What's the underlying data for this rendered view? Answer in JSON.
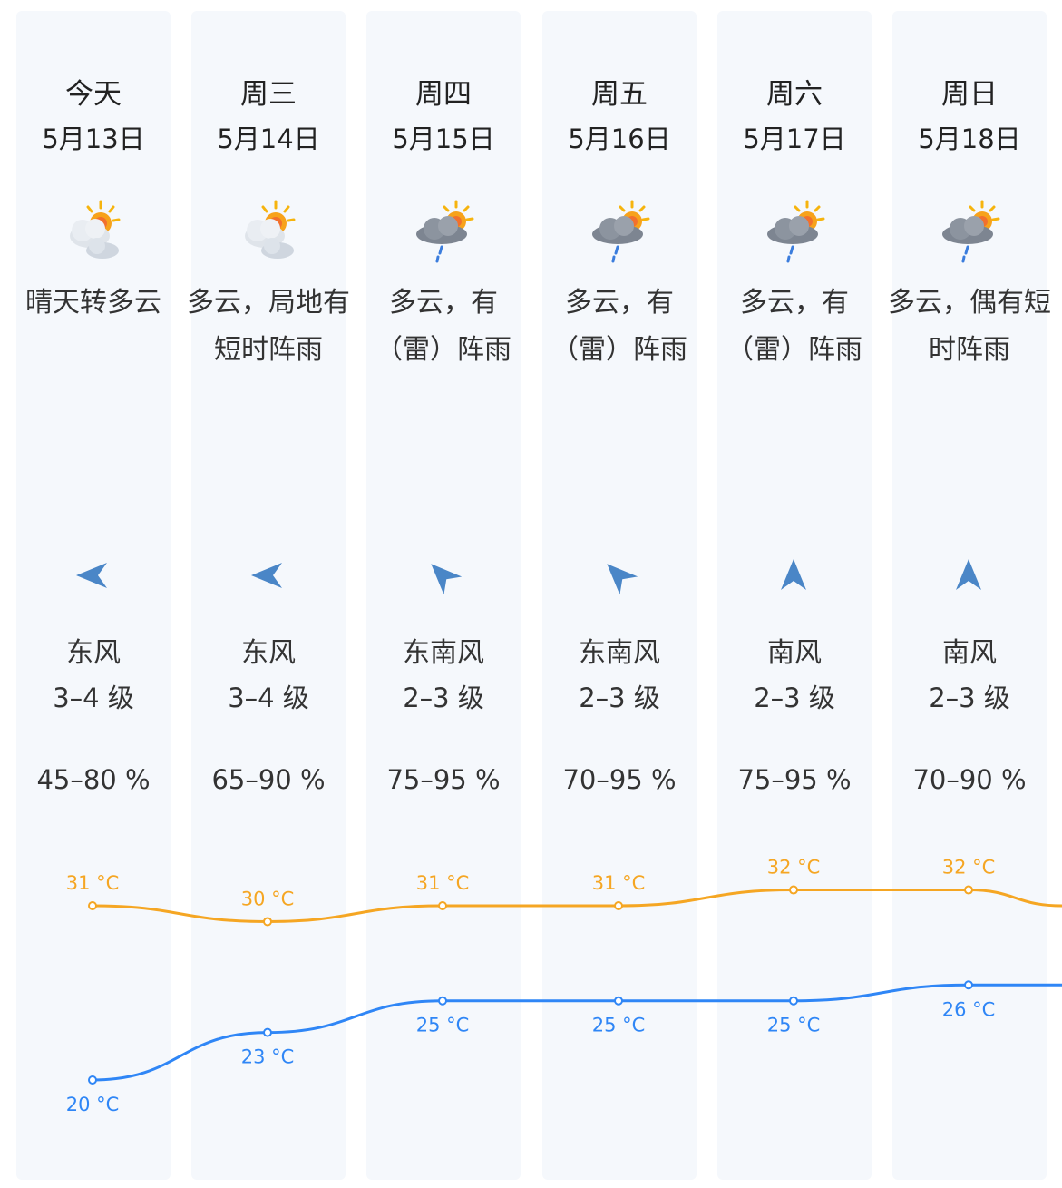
{
  "colors": {
    "high": "#f5a623",
    "low": "#2f86f6",
    "column_bg": "#f5f8fc",
    "wind_icon": "#4a86c7"
  },
  "days": [
    {
      "day": "今天",
      "date": "5月13日",
      "icon": "sun-cloud-icon",
      "desc": "晴天转多云",
      "wind_dir": "东风",
      "wind_icon": "wind-west-arrow-icon",
      "wind_level": "3–4 级",
      "humidity": "45–80 %",
      "high": 31,
      "low": 20
    },
    {
      "day": "周三",
      "date": "5月14日",
      "icon": "sun-cloud-icon",
      "desc": "多云，局地有短时阵雨",
      "wind_dir": "东风",
      "wind_icon": "wind-west-arrow-icon",
      "wind_level": "3–4 级",
      "humidity": "65–90 %",
      "high": 30,
      "low": 23
    },
    {
      "day": "周四",
      "date": "5月15日",
      "icon": "cloud-rain-icon",
      "desc": "多云，有（雷）阵雨",
      "wind_dir": "东南风",
      "wind_icon": "wind-northwest-arrow-icon",
      "wind_level": "2–3 级",
      "humidity": "75–95 %",
      "high": 31,
      "low": 25
    },
    {
      "day": "周五",
      "date": "5月16日",
      "icon": "cloud-rain-icon",
      "desc": "多云，有（雷）阵雨",
      "wind_dir": "东南风",
      "wind_icon": "wind-northwest-arrow-icon",
      "wind_level": "2–3 级",
      "humidity": "70–95 %",
      "high": 31,
      "low": 25
    },
    {
      "day": "周六",
      "date": "5月17日",
      "icon": "cloud-rain-icon",
      "desc": "多云，有（雷）阵雨",
      "wind_dir": "南风",
      "wind_icon": "wind-north-arrow-icon",
      "wind_level": "2–3 级",
      "humidity": "75–95 %",
      "high": 32,
      "low": 25
    },
    {
      "day": "周日",
      "date": "5月18日",
      "icon": "cloud-rain-icon",
      "desc": "多云，偶有短时阵雨",
      "wind_dir": "南风",
      "wind_icon": "wind-north-arrow-icon",
      "wind_level": "2–3 级",
      "humidity": "70–90 %",
      "high": 32,
      "low": 26
    }
  ],
  "unit": "°C",
  "chart_data": {
    "type": "line",
    "categories": [
      "5月13日",
      "5月14日",
      "5月15日",
      "5月16日",
      "5月17日",
      "5月18日"
    ],
    "series": [
      {
        "values": [
          31,
          30,
          31,
          31,
          32,
          32
        ]
      },
      {
        "values": [
          20,
          23,
          25,
          25,
          25,
          26
        ]
      }
    ],
    "unit": "°C"
  }
}
